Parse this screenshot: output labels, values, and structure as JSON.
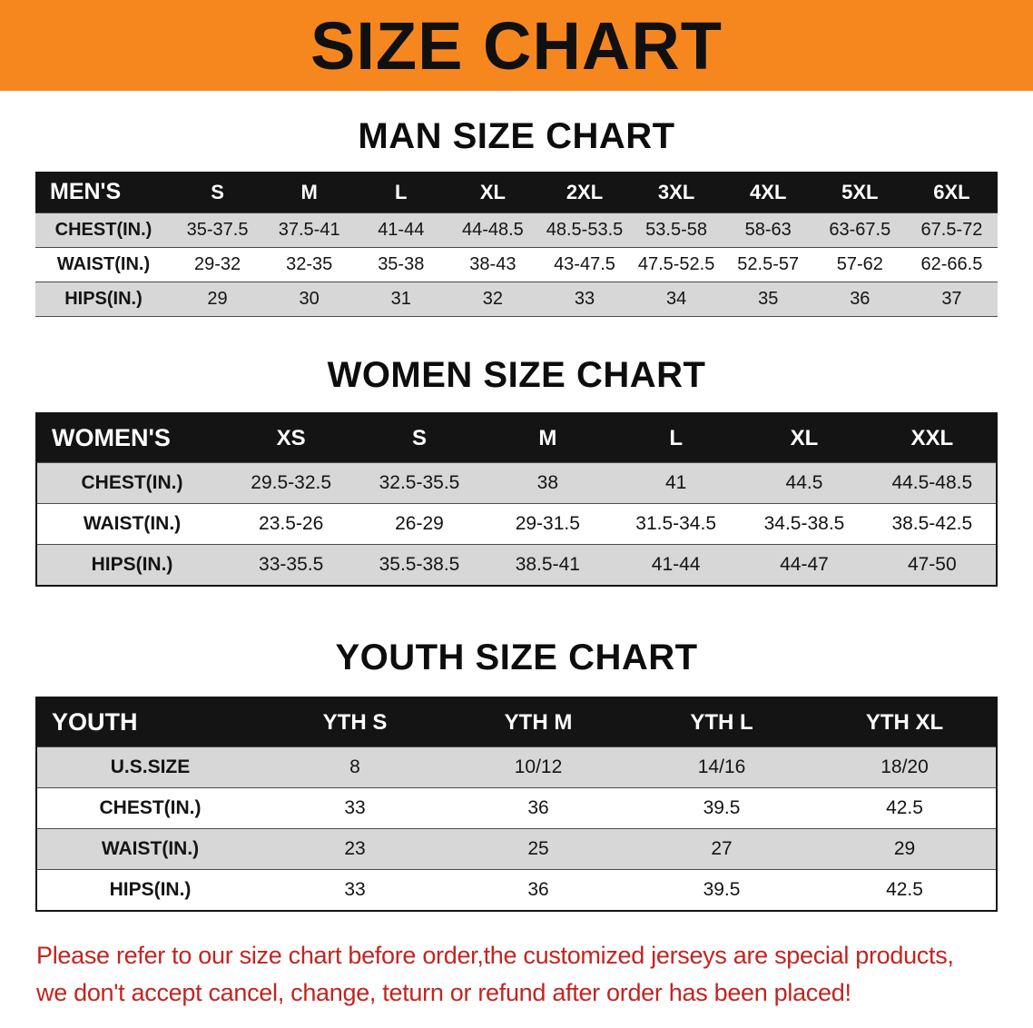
{
  "banner": {
    "title": "SIZE CHART"
  },
  "colors": {
    "banner_bg": "#f6871f",
    "header_bg": "#141414",
    "row_alt": "#d7d7d7",
    "note_color": "#c32420"
  },
  "sections": [
    {
      "heading": "MAN SIZE CHART",
      "table": {
        "name": "mens-size-table",
        "style": "compact",
        "outer_border": false,
        "first_col_width": 150,
        "columns": [
          "MEN'S",
          "S",
          "M",
          "L",
          "XL",
          "2XL",
          "3XL",
          "4XL",
          "5XL",
          "6XL"
        ],
        "rows": [
          [
            "CHEST(IN.)",
            "35-37.5",
            "37.5-41",
            "41-44",
            "44-48.5",
            "48.5-53.5",
            "53.5-58",
            "58-63",
            "63-67.5",
            "67.5-72"
          ],
          [
            "WAIST(IN.)",
            "29-32",
            "32-35",
            "35-38",
            "38-43",
            "43-47.5",
            "47.5-52.5",
            "52.5-57",
            "57-62",
            "62-66.5"
          ],
          [
            "HIPS(IN.)",
            "29",
            "30",
            "31",
            "32",
            "33",
            "34",
            "35",
            "36",
            "37"
          ]
        ]
      }
    },
    {
      "heading": "WOMEN SIZE CHART",
      "table": {
        "name": "womens-size-table",
        "style": "regular",
        "outer_border": true,
        "first_col_width": 210,
        "columns": [
          "WOMEN'S",
          "XS",
          "S",
          "M",
          "L",
          "XL",
          "XXL"
        ],
        "rows": [
          [
            "CHEST(IN.)",
            "29.5-32.5",
            "32.5-35.5",
            "38",
            "41",
            "44.5",
            "44.5-48.5"
          ],
          [
            "WAIST(IN.)",
            "23.5-26",
            "26-29",
            "29-31.5",
            "31.5-34.5",
            "34.5-38.5",
            "38.5-42.5"
          ],
          [
            "HIPS(IN.)",
            "33-35.5",
            "35.5-38.5",
            "38.5-41",
            "41-44",
            "44-47",
            "47-50"
          ]
        ]
      }
    },
    {
      "heading": "YOUTH SIZE CHART",
      "table": {
        "name": "youth-size-table",
        "style": "regular",
        "outer_border": true,
        "first_col_width": 250,
        "columns": [
          "YOUTH",
          "YTH S",
          "YTH M",
          "YTH L",
          "YTH XL"
        ],
        "rows": [
          [
            "U.S.SIZE",
            "8",
            "10/12",
            "14/16",
            "18/20"
          ],
          [
            "CHEST(IN.)",
            "33",
            "36",
            "39.5",
            "42.5"
          ],
          [
            "WAIST(IN.)",
            "23",
            "25",
            "27",
            "29"
          ],
          [
            "HIPS(IN.)",
            "33",
            "36",
            "39.5",
            "42.5"
          ]
        ]
      }
    }
  ],
  "footer": {
    "line1": "Please refer to our size chart before order,the customized jerseys are special products,",
    "line2": "we don't accept cancel, change, teturn or refund after order has been placed!"
  }
}
